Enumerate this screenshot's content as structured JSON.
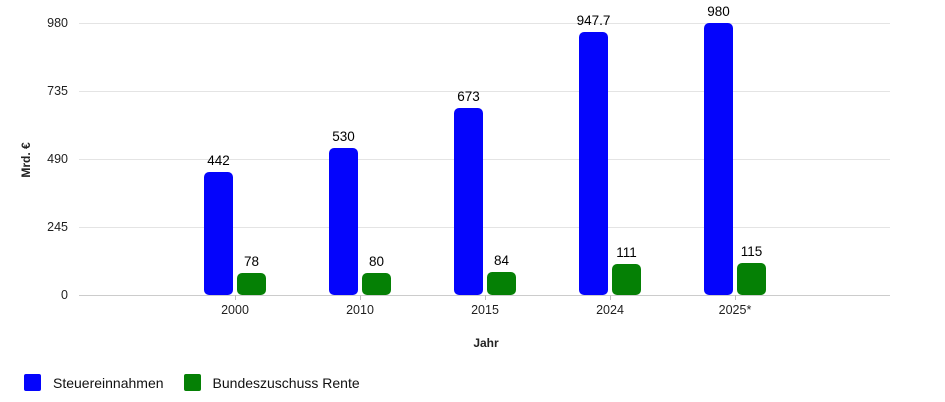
{
  "chart_data": {
    "type": "bar",
    "title": "",
    "xlabel": "Jahr",
    "ylabel": "Mrd. €",
    "categories": [
      "2000",
      "2010",
      "2015",
      "2024",
      "2025*"
    ],
    "series": [
      {
        "name": "Steuereinnahmen",
        "color": "#0404fc",
        "values": [
          442,
          530,
          673,
          947.7,
          980
        ]
      },
      {
        "name": "Bundeszuschuss Rente",
        "color": "#058005",
        "values": [
          78,
          80,
          84,
          111,
          115
        ]
      }
    ],
    "yticks": [
      0,
      245,
      490,
      735,
      980
    ],
    "ylim": [
      0,
      980
    ],
    "grid": true,
    "legend_position": "bottom-left",
    "value_labels_shown": true
  },
  "colors": {
    "steuereinnahmen": "#0404fc",
    "bundeszuschuss_rente": "#058005",
    "gridline": "#e4e4e4",
    "axis_line": "#cccccc",
    "text": "#1f1f1f"
  }
}
